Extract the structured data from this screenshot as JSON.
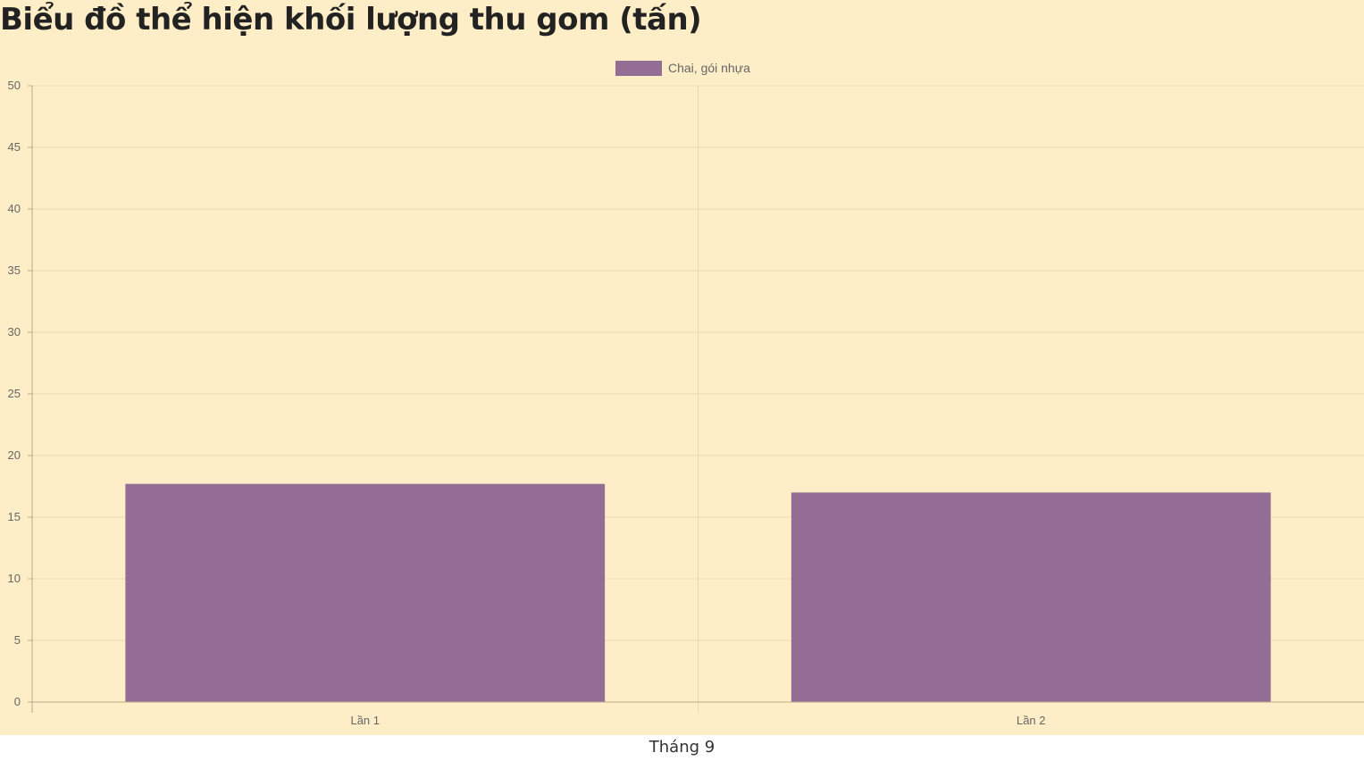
{
  "page": {
    "title": "Biểu đồ thể hiện khối lượng thu gom (tấn)",
    "caption": "Tháng 9"
  },
  "colors": {
    "panel_background": "#feeec7",
    "grid": "#ead9b0",
    "axis": "#b9a98a",
    "tick_text": "#666666",
    "bar": "#946d95"
  },
  "chart_data": {
    "type": "bar",
    "categories": [
      "Lần 1",
      "Lần 2"
    ],
    "series": [
      {
        "name": "Chai, gói nhựa",
        "values": [
          17.7,
          17.0
        ],
        "color": "#946d95"
      }
    ],
    "ylim": [
      0,
      50
    ],
    "yticks": [
      0,
      5,
      10,
      15,
      20,
      25,
      30,
      35,
      40,
      45,
      50
    ],
    "grid": true,
    "legend_position": "top-center"
  }
}
